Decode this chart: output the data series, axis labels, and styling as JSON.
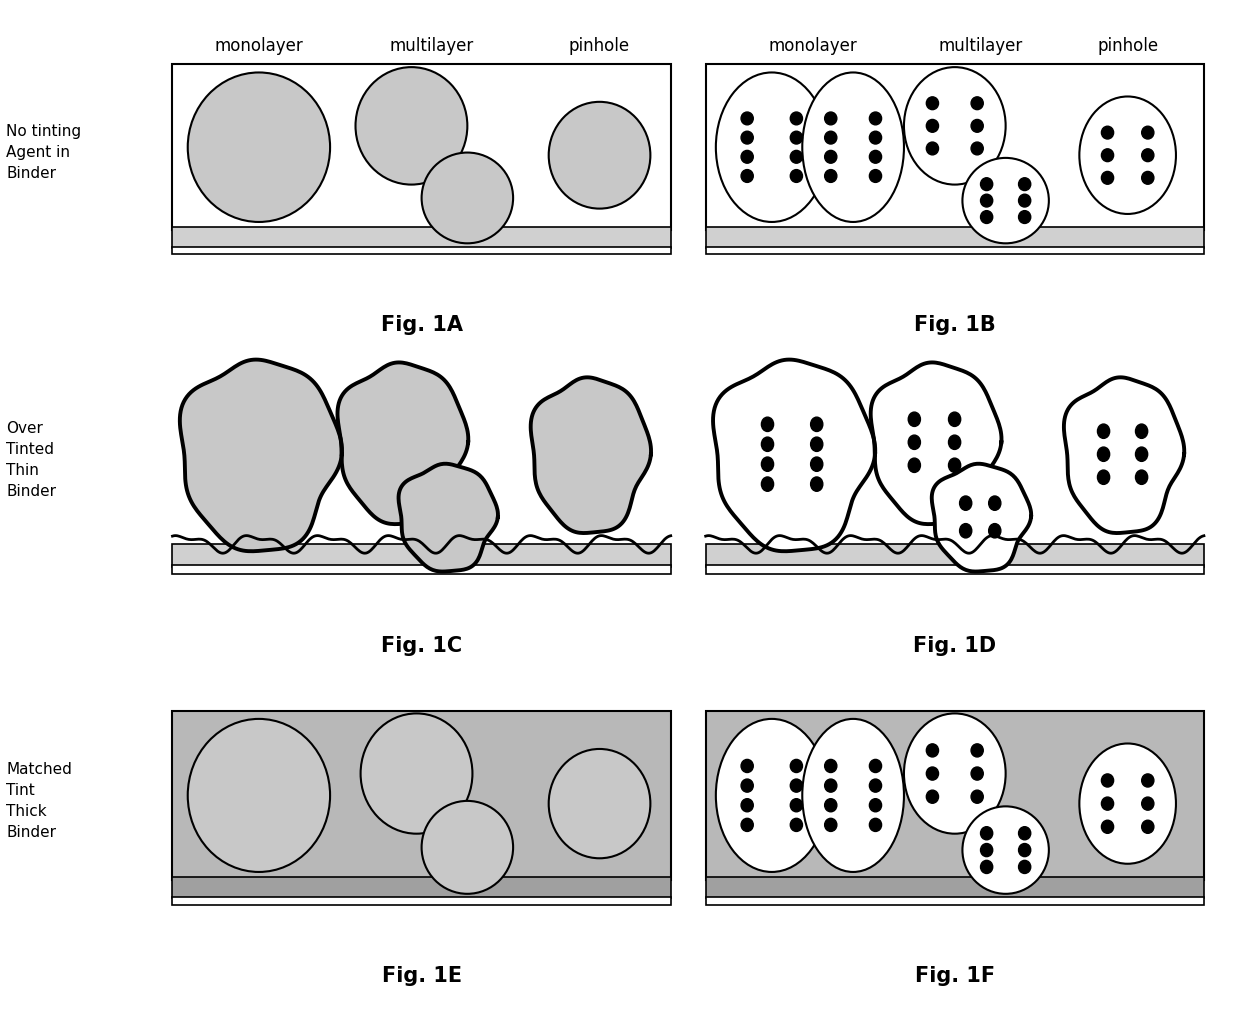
{
  "fig_labels": [
    "Fig. 1A",
    "Fig. 1B",
    "Fig. 1C",
    "Fig. 1D",
    "Fig. 1E",
    "Fig. 1F"
  ],
  "row_labels_top": [
    [
      "No tinting",
      "Agent in",
      "Binder"
    ],
    [
      "Over",
      "Tinted",
      "Thin",
      "Binder"
    ],
    [
      "Matched",
      "Tint",
      "Thick",
      "Binder"
    ]
  ],
  "col_headers": [
    "monolayer",
    "multilayer",
    "pinhole"
  ],
  "bg": "#ffffff",
  "gray_sphere": "#c8c8c8",
  "white_sphere": "#ffffff",
  "gray_binder": "#b8b8b8",
  "dark_gray_binder": "#a0a0a0",
  "bottom_bar": "#d0d0d0",
  "dot_color": "#000000",
  "header_fontsize": 12,
  "fig_label_fontsize": 15,
  "row_label_fontsize": 11
}
